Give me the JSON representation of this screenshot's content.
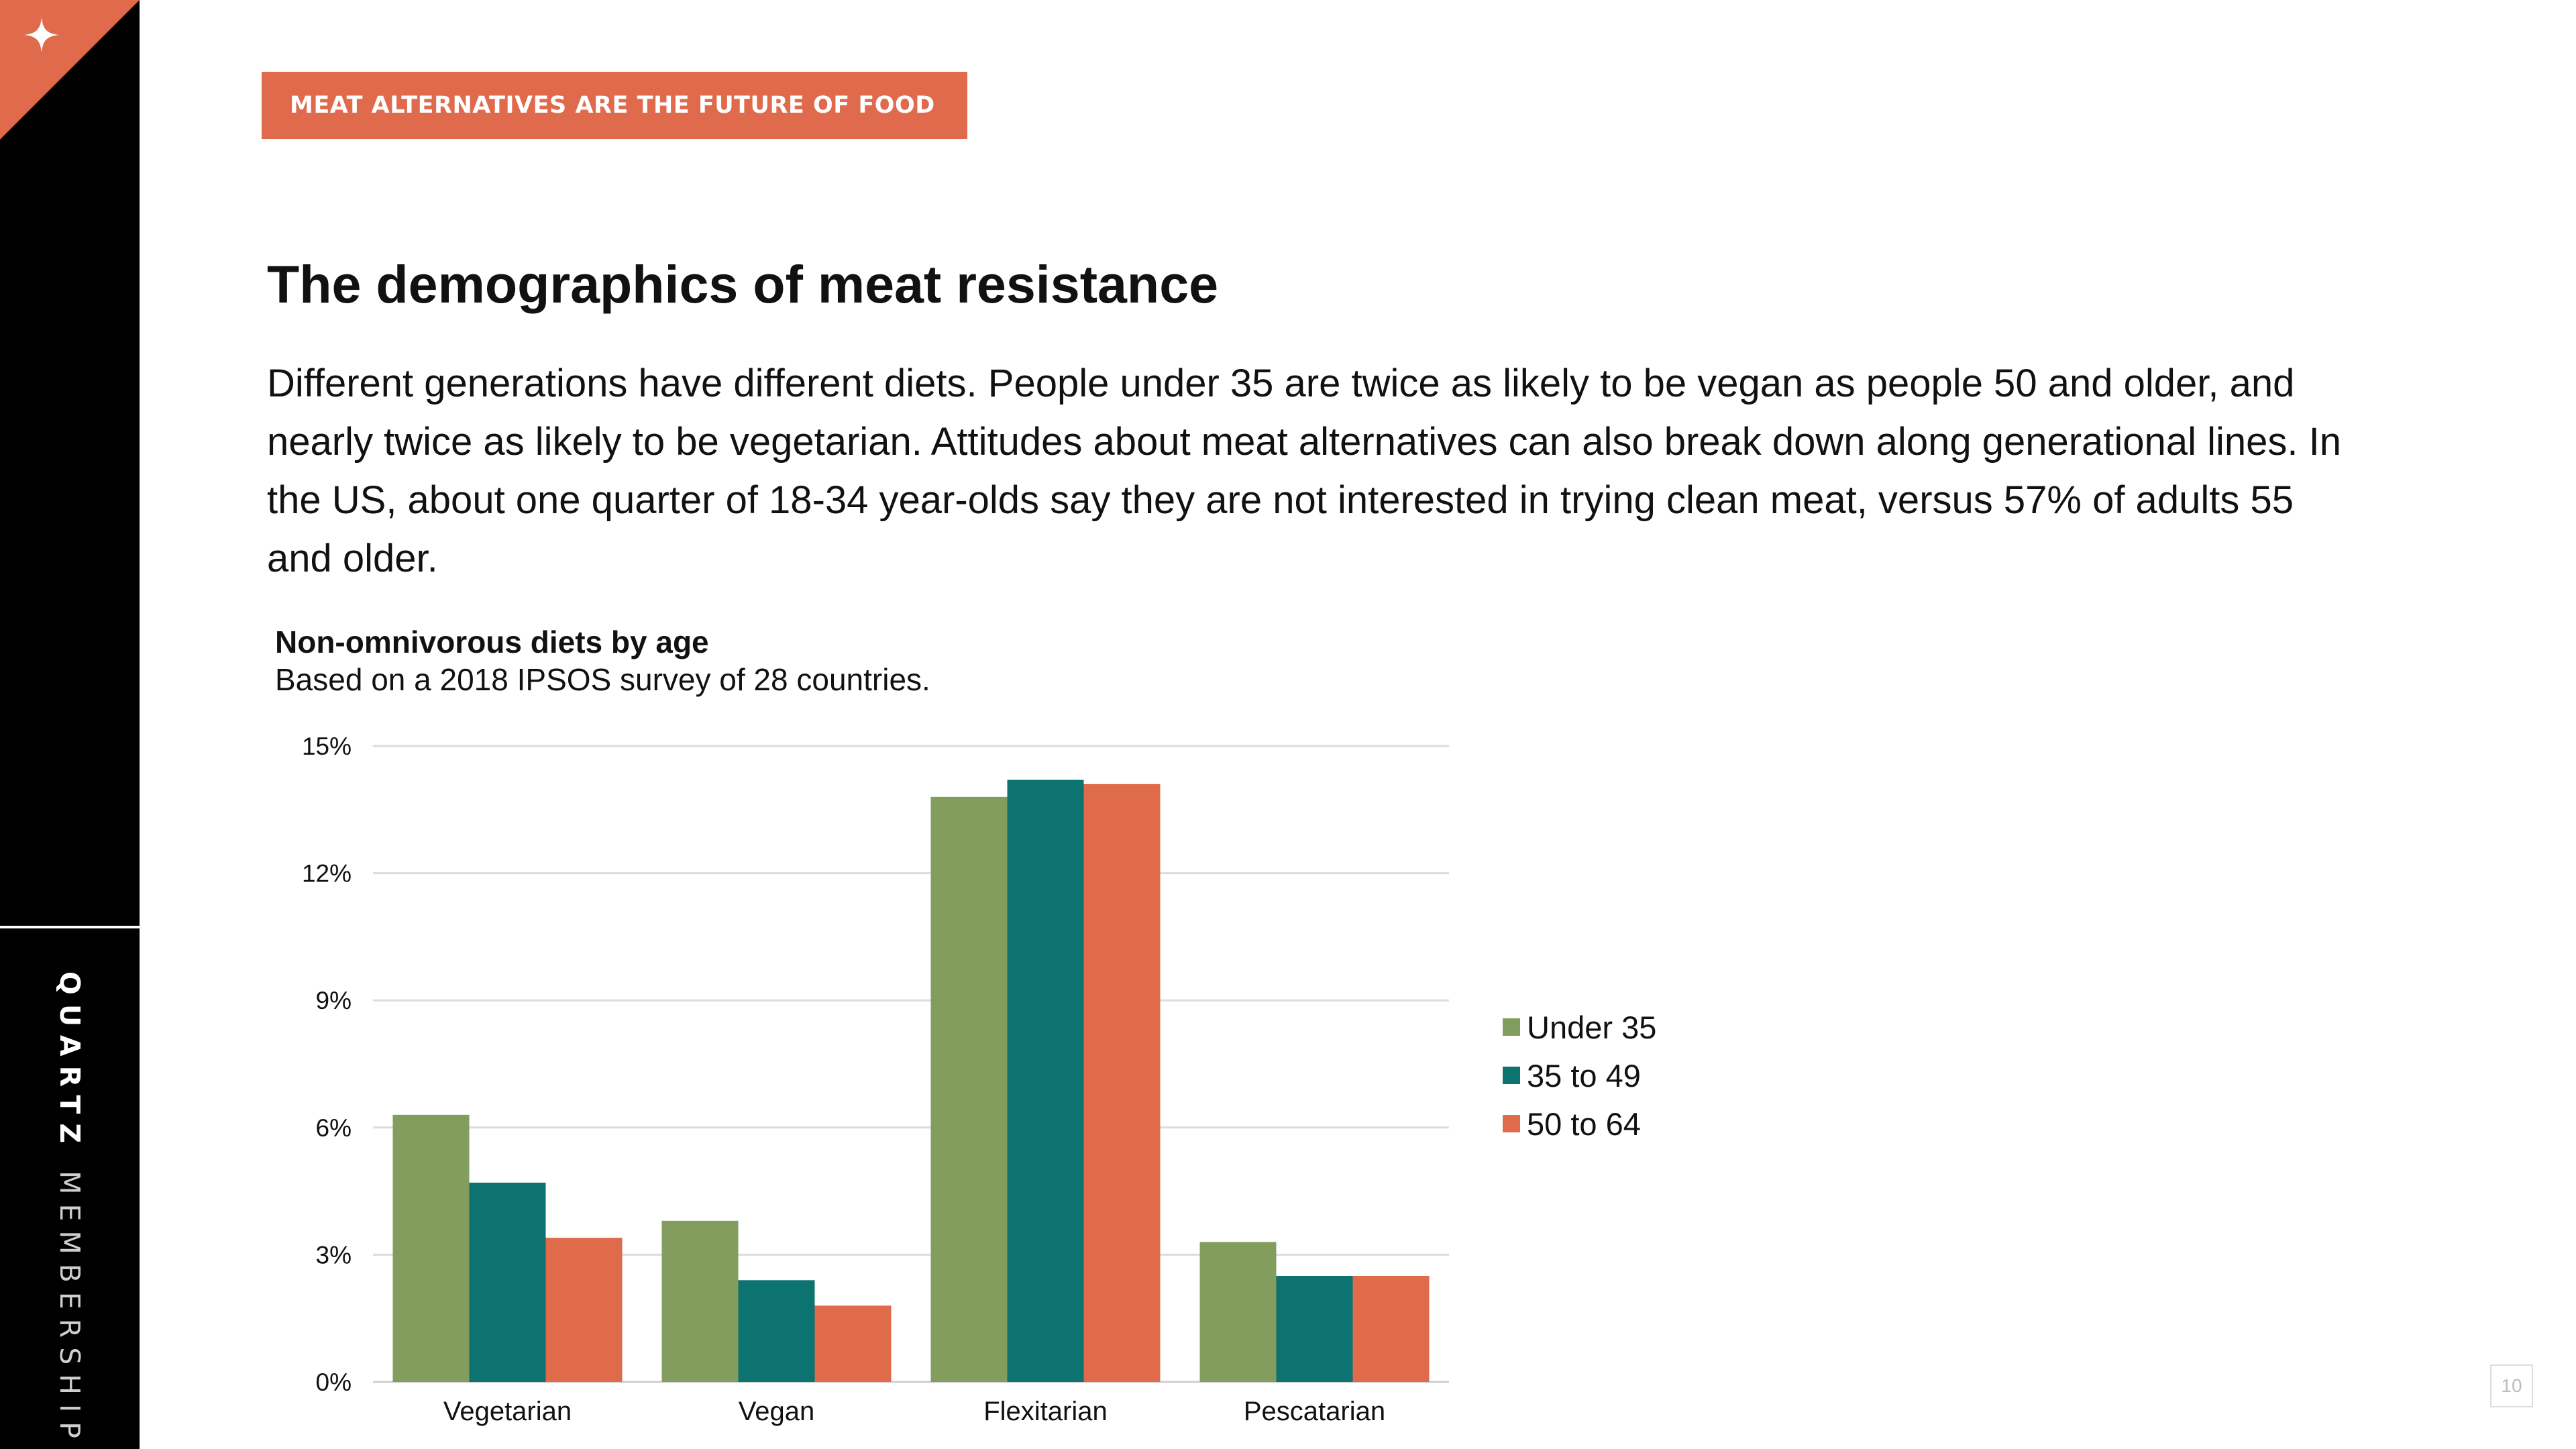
{
  "sidebar": {
    "brand_bold": "QUARTZ",
    "brand_light": "MEMBERSHIP"
  },
  "header": {
    "tag": "MEAT ALTERNATIVES ARE THE FUTURE OF FOOD"
  },
  "main": {
    "title": "The demographics of meat resistance",
    "body": "Different generations have different diets. People under 35 are twice as likely to be vegan as people 50 and older, and nearly twice as likely to be vegetarian. Attitudes about meat alternatives can also break down along generational lines. In the US, about one quarter of 18-34 year-olds say they are not interested in trying clean meat, versus 57% of adults 55 and older."
  },
  "page_number": "10",
  "colors": {
    "accent": "#e06a4c",
    "sidebar": "#000000",
    "series": [
      "#829d5d",
      "#0c7370",
      "#df6b4b"
    ]
  },
  "icons": {
    "corner": "sparkle-icon"
  },
  "chart_data": {
    "type": "bar",
    "title": "Non-omnivorous diets by age",
    "subtitle": "Based on a 2018 IPSOS survey of 28 countries.",
    "categories": [
      "Vegetarian",
      "Vegan",
      "Flexitarian",
      "Pescatarian"
    ],
    "series": [
      {
        "name": "Under 35",
        "values": [
          6.3,
          3.8,
          13.8,
          3.3
        ]
      },
      {
        "name": "35 to 49",
        "values": [
          4.7,
          2.4,
          14.2,
          2.5
        ]
      },
      {
        "name": "50 to 64",
        "values": [
          3.4,
          1.8,
          14.1,
          2.5
        ]
      }
    ],
    "y_ticks": [
      "0%",
      "3%",
      "6%",
      "9%",
      "12%",
      "15%"
    ],
    "ylim": [
      0,
      15
    ],
    "grid": true,
    "legend": "right"
  }
}
